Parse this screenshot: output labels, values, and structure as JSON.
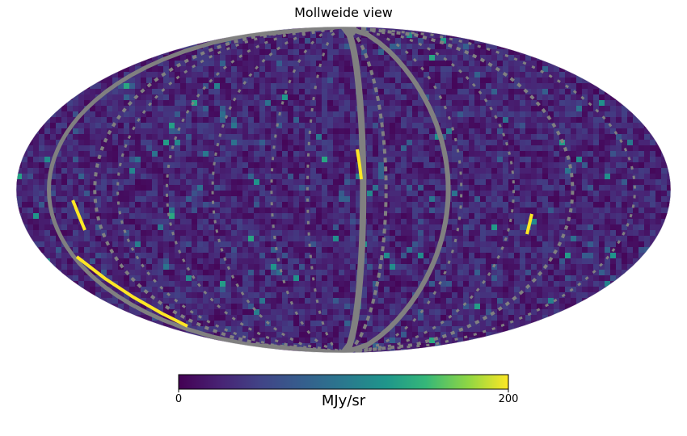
{
  "chart_data": {
    "type": "heatmap",
    "projection": "mollweide",
    "title": "Mollweide view",
    "colormap": "viridis",
    "colorbar": {
      "label": "MJy/sr",
      "min": 0,
      "max": 200,
      "tick_labels": [
        "0",
        "200"
      ],
      "orientation": "horizontal",
      "placement": "bottom"
    },
    "background_level_fraction": 0.12,
    "bad_value_color": "#808080",
    "masked_scan_stripes": "vertical gray arcs of unobserved pixels across the full sky",
    "saturated_features": "yellow streaks near lower-left edge and near the central vertical arc"
  }
}
